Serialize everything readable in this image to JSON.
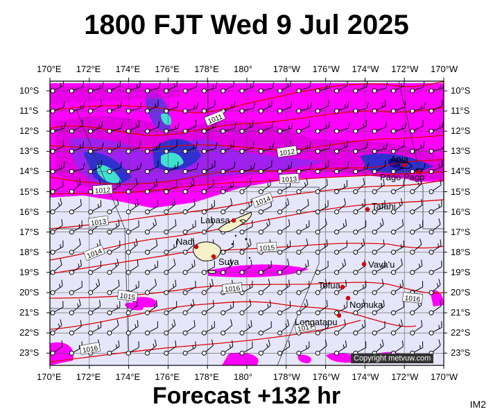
{
  "title": "1800 FJT Wed 9 Jul 2025",
  "footer": "Forecast +132 hr",
  "image_code": "IM2",
  "copyright": "Copyright metvuw.com",
  "lon_labels": [
    "170°E",
    "172°E",
    "174°E",
    "176°E",
    "178°E",
    "180°",
    "178°W",
    "176°W",
    "174°W",
    "172°W",
    "170°W"
  ],
  "lat_labels": [
    "10°S",
    "11°S",
    "12°S",
    "13°S",
    "14°S",
    "15°S",
    "16°S",
    "17°S",
    "18°S",
    "19°S",
    "20°S",
    "21°S",
    "22°S",
    "23°S"
  ],
  "isobar_labels": [
    "1011",
    "1012",
    "1012",
    "1013",
    "1013",
    "1014",
    "1014",
    "1015",
    "1015",
    "1016",
    "1016",
    "1016",
    "1017"
  ],
  "places": [
    "Labasa",
    "Nadi",
    "Suva",
    "Tafahi",
    "Vava'u",
    "Tofua",
    "Nomuka",
    "Longatapu",
    "Apia",
    "Pago Pago"
  ],
  "colors": {
    "background": "#e6e6fa",
    "rain_light": "#ff00ff",
    "rain_mid": "#a020f0",
    "rain_heavy": "#3030d0",
    "rain_peak": "#40e0d0",
    "isobar": "#e00000"
  }
}
